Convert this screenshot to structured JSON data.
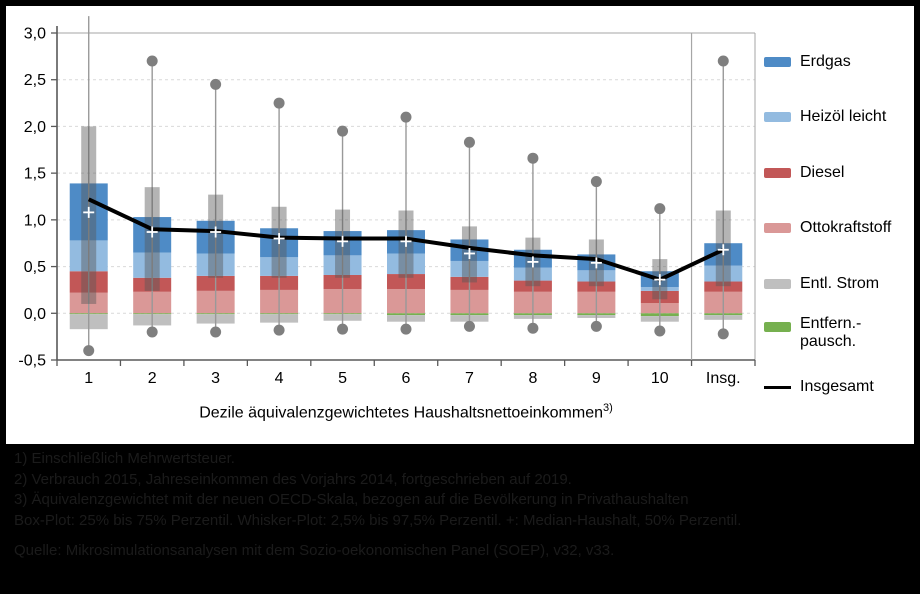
{
  "chart": {
    "y_ticks": [
      "3,0",
      "2,5",
      "2,0",
      "1,5",
      "1,0",
      "0,5",
      "0,0",
      "-0,5"
    ],
    "x_title_main": "Dezile äquivalenzgewichtetes Haushaltsnettoeinkommen",
    "x_title_sup": "3)",
    "legend": [
      {
        "label": "Erdgas",
        "color": "#4E8BC6",
        "symbol": "box"
      },
      {
        "label": "Heizöl leicht",
        "color": "#93BBE0",
        "symbol": "box"
      },
      {
        "label": "Diesel",
        "color": "#C25757",
        "symbol": "box"
      },
      {
        "label": "Ottokraftstoff",
        "color": "#DA9897",
        "symbol": "box"
      },
      {
        "label": "Entl. Strom",
        "color": "#BFBFBF",
        "symbol": "box"
      },
      {
        "label": "Entfern.-\npausch.",
        "color": "#76B04F",
        "symbol": "box"
      },
      {
        "label": "Insgesamt",
        "color": "#000000",
        "symbol": "line"
      }
    ]
  },
  "chart_data": {
    "type": "bar",
    "subtype": "stacked-bars-with-boxplot-whiskers-and-total-line",
    "categories": [
      "1",
      "2",
      "3",
      "4",
      "5",
      "6",
      "7",
      "8",
      "9",
      "10",
      "Insg."
    ],
    "xlabel": "Dezile äquivalenzgewichtetes Haushaltsnettoeinkommen3)",
    "ylim": [
      -0.5,
      3.0
    ],
    "ytick_step": 0.5,
    "grid": true,
    "legend_position": "right",
    "series": [
      {
        "name": "Ottokraftstoff",
        "color": "#DA9897",
        "values": [
          0.22,
          0.23,
          0.24,
          0.25,
          0.26,
          0.26,
          0.25,
          0.23,
          0.23,
          0.11,
          0.23
        ]
      },
      {
        "name": "Diesel",
        "color": "#C25757",
        "values": [
          0.23,
          0.15,
          0.16,
          0.15,
          0.15,
          0.16,
          0.14,
          0.12,
          0.11,
          0.13,
          0.11
        ]
      },
      {
        "name": "Heizöl leicht",
        "color": "#93BBE0",
        "values": [
          0.33,
          0.27,
          0.24,
          0.2,
          0.21,
          0.22,
          0.17,
          0.14,
          0.12,
          0.04,
          0.17
        ]
      },
      {
        "name": "Erdgas",
        "color": "#4E8BC6",
        "values": [
          0.61,
          0.38,
          0.35,
          0.31,
          0.26,
          0.25,
          0.23,
          0.19,
          0.17,
          0.17,
          0.24
        ]
      },
      {
        "name": "Entfern.-pausch.",
        "color": "#76B04F",
        "values": [
          -0.01,
          -0.01,
          -0.01,
          -0.01,
          -0.01,
          -0.02,
          -0.02,
          -0.02,
          -0.02,
          -0.03,
          -0.02
        ]
      },
      {
        "name": "Entl. Strom",
        "color": "#BFBFBF",
        "values": [
          -0.16,
          -0.12,
          -0.1,
          -0.09,
          -0.07,
          -0.07,
          -0.07,
          -0.04,
          -0.03,
          -0.06,
          -0.05
        ]
      }
    ],
    "line_series": {
      "name": "Insgesamt",
      "color": "#000000",
      "values": [
        1.22,
        0.9,
        0.88,
        0.81,
        0.8,
        0.8,
        0.7,
        0.62,
        0.58,
        0.36,
        0.68
      ]
    },
    "boxplot": {
      "box_color": "#595959",
      "dot_color": "#7F7F7F",
      "median_marker": "+",
      "q25": [
        0.1,
        0.24,
        0.38,
        0.38,
        0.38,
        0.38,
        0.33,
        0.29,
        0.29,
        0.15,
        0.29
      ],
      "q75": [
        2.0,
        1.35,
        1.27,
        1.14,
        1.11,
        1.1,
        0.93,
        0.81,
        0.79,
        0.58,
        1.1
      ],
      "median": [
        1.08,
        0.87,
        0.87,
        0.8,
        0.77,
        0.77,
        0.64,
        0.55,
        0.54,
        0.36,
        0.68
      ],
      "whisker_low": [
        -0.4,
        -0.2,
        -0.2,
        -0.18,
        -0.17,
        -0.17,
        -0.14,
        -0.16,
        -0.14,
        -0.19,
        -0.22
      ],
      "whisker_high": [
        3.18,
        2.7,
        2.45,
        2.25,
        1.95,
        2.1,
        1.83,
        1.66,
        1.41,
        1.12,
        2.7
      ],
      "whisker_high_clipped_at_top": [
        true,
        false,
        false,
        false,
        false,
        false,
        false,
        false,
        false,
        false,
        false
      ]
    },
    "separator_before_category": "Insg."
  },
  "footnotes": {
    "lines": [
      "1) Einschließlich Mehrwertsteuer.",
      "2) Verbrauch 2015, Jahreseinkommen des Vorjahrs 2014, fortgeschrieben auf 2019.",
      "3) Äquivalenzgewichtet mit der neuen OECD-Skala, bezogen auf die Bevölkerung in Privathaushalten",
      "Box-Plot: 25% bis 75% Perzentil. Whisker-Plot: 2,5% bis 97,5% Perzentil. +: Median-Haushalt, 50% Perzentil."
    ],
    "source": "Quelle: Mikrosimulationsanalysen mit dem Sozio-oekonomischen Panel (SOEP), v32, v33."
  }
}
